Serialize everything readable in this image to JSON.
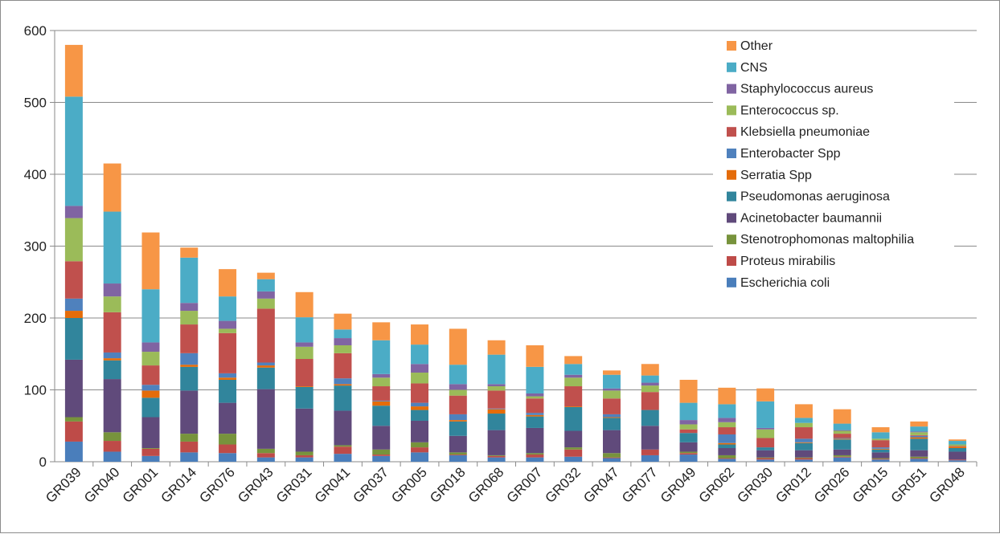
{
  "chart_data": {
    "type": "bar",
    "stacked": true,
    "title": "",
    "xlabel": "",
    "ylabel": "",
    "ylim": [
      0,
      600
    ],
    "yticks": [
      0,
      100,
      200,
      300,
      400,
      500,
      600
    ],
    "grid": true,
    "legend_position": "top-right",
    "categories": [
      "GR039",
      "GR040",
      "GR001",
      "GR014",
      "GR076",
      "GR043",
      "GR031",
      "GR041",
      "GR037",
      "GR005",
      "GR018",
      "GR068",
      "GR007",
      "GR032",
      "GR047",
      "GR077",
      "GR049",
      "GR062",
      "GR030",
      "GR012",
      "GR026",
      "GR015",
      "GR051",
      "GR048"
    ],
    "series": [
      {
        "name": "Escherichia coli",
        "color": "#4a7ebb",
        "values": [
          28,
          14,
          8,
          13,
          12,
          6,
          6,
          11,
          8,
          13,
          9,
          6,
          6,
          7,
          5,
          9,
          10,
          4,
          3,
          3,
          6,
          3,
          4,
          2
        ]
      },
      {
        "name": "Proteus mirabilis",
        "color": "#be4b48",
        "values": [
          28,
          15,
          10,
          15,
          12,
          6,
          3,
          10,
          2,
          7,
          1,
          2,
          4,
          10,
          1,
          8,
          2,
          1,
          2,
          2,
          1,
          1,
          1,
          1
        ]
      },
      {
        "name": "Stenotrophomonas maltophilia",
        "color": "#77933c",
        "values": [
          6,
          12,
          1,
          11,
          15,
          6,
          5,
          2,
          7,
          7,
          3,
          1,
          2,
          3,
          6,
          0,
          2,
          4,
          1,
          1,
          2,
          1,
          2,
          0
        ]
      },
      {
        "name": "Acinetobacter baumannii",
        "color": "#604a7b",
        "values": [
          80,
          74,
          43,
          60,
          43,
          83,
          60,
          48,
          33,
          30,
          23,
          35,
          35,
          23,
          32,
          33,
          13,
          10,
          10,
          10,
          8,
          8,
          9,
          11
        ]
      },
      {
        "name": "Pseudomonas aeruginosa",
        "color": "#31859c",
        "values": [
          58,
          26,
          27,
          33,
          32,
          30,
          30,
          35,
          28,
          15,
          20,
          23,
          16,
          33,
          17,
          22,
          13,
          5,
          4,
          10,
          14,
          4,
          16,
          5
        ]
      },
      {
        "name": "Serratia Spp",
        "color": "#e46c0a",
        "values": [
          10,
          3,
          10,
          3,
          3,
          3,
          1,
          2,
          6,
          5,
          2,
          6,
          2,
          1,
          1,
          0,
          0,
          2,
          0,
          1,
          1,
          1,
          2,
          2
        ]
      },
      {
        "name": "Enterobacter Spp",
        "color": "#4f81bd",
        "values": [
          17,
          8,
          8,
          16,
          6,
          4,
          0,
          8,
          1,
          5,
          8,
          1,
          3,
          0,
          4,
          0,
          0,
          12,
          0,
          5,
          1,
          2,
          2,
          0
        ]
      },
      {
        "name": "Klebsiella pneumoniae",
        "color": "#c0504d",
        "values": [
          52,
          56,
          27,
          40,
          56,
          75,
          38,
          35,
          20,
          27,
          26,
          25,
          20,
          28,
          22,
          25,
          5,
          10,
          13,
          16,
          6,
          10,
          1,
          1
        ]
      },
      {
        "name": "Enterococcus sp.",
        "color": "#9bbb59",
        "values": [
          60,
          22,
          19,
          19,
          6,
          14,
          17,
          11,
          12,
          15,
          8,
          6,
          3,
          12,
          11,
          9,
          7,
          7,
          12,
          6,
          4,
          2,
          4,
          2
        ]
      },
      {
        "name": "Staphylococcus aureus",
        "color": "#8064a2",
        "values": [
          17,
          18,
          13,
          11,
          11,
          10,
          6,
          10,
          5,
          12,
          8,
          3,
          4,
          4,
          3,
          4,
          6,
          6,
          2,
          0,
          1,
          0,
          1,
          0
        ]
      },
      {
        "name": "CNS",
        "color": "#4bacc6",
        "values": [
          152,
          100,
          74,
          63,
          34,
          17,
          35,
          12,
          47,
          27,
          27,
          41,
          37,
          15,
          19,
          10,
          24,
          19,
          37,
          7,
          9,
          9,
          7,
          5
        ]
      },
      {
        "name": "Other",
        "color": "#f79646",
        "values": [
          72,
          67,
          79,
          14,
          38,
          9,
          35,
          22,
          25,
          28,
          50,
          20,
          30,
          11,
          6,
          16,
          32,
          23,
          18,
          19,
          20,
          7,
          7,
          2
        ]
      }
    ]
  }
}
